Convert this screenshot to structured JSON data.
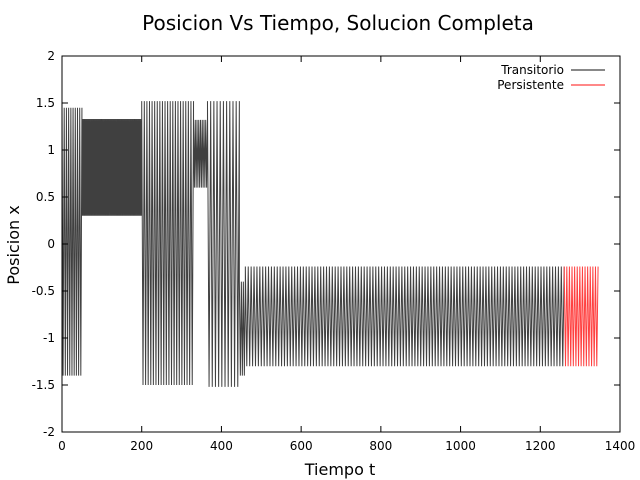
{
  "chart_data": {
    "type": "line",
    "title": "Posicion Vs Tiempo, Solucion Completa",
    "xlabel": "Tiempo t",
    "ylabel": "Posicion x",
    "xlim": [
      0,
      1400
    ],
    "ylim": [
      -2,
      2
    ],
    "xticks": [
      "0",
      "200",
      "400",
      "600",
      "800",
      "1000",
      "1200",
      "1400"
    ],
    "yticks": [
      "2",
      "1.5",
      "1",
      "0.5",
      "0",
      "-0.5",
      "-1",
      "-1.5",
      "-2"
    ],
    "grid": false,
    "legend_position": "top-right",
    "series": [
      {
        "name": "Transitorio",
        "color": "#404040",
        "segments": [
          {
            "x_start": 0,
            "x_end": 50,
            "cycles": 9,
            "y_min": -1.4,
            "y_max": 1.45
          },
          {
            "x_start": 50,
            "x_end": 200,
            "cycles": 58,
            "y_min": 0.3,
            "y_max": 1.33
          },
          {
            "x_start": 200,
            "x_end": 330,
            "cycles": 20,
            "y_min": -1.5,
            "y_max": 1.52
          },
          {
            "x_start": 330,
            "x_end": 365,
            "cycles": 8,
            "y_min": 0.6,
            "y_max": 1.32
          },
          {
            "x_start": 365,
            "x_end": 445,
            "cycles": 10,
            "y_min": -1.52,
            "y_max": 1.52
          },
          {
            "x_start": 445,
            "x_end": 460,
            "cycles": 3,
            "y_min": -1.4,
            "y_max": -0.4
          },
          {
            "x_start": 460,
            "x_end": 1260,
            "cycles": 110,
            "y_min": -1.3,
            "y_max": -0.24
          }
        ]
      },
      {
        "name": "Persistente",
        "color": "#ff4040",
        "segments": [
          {
            "x_start": 1260,
            "x_end": 1345,
            "cycles": 13,
            "y_min": -1.3,
            "y_max": -0.24
          }
        ]
      }
    ]
  }
}
